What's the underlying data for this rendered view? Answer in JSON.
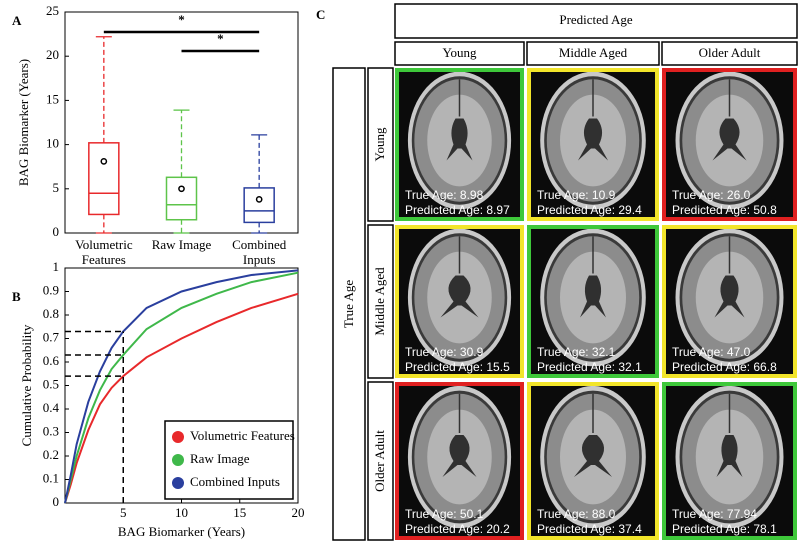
{
  "panel_labels": [
    "A",
    "B",
    "C"
  ],
  "chart_data": [
    {
      "type": "box",
      "ylabel": "BAG Biomarker (Years)",
      "categories": [
        "Volumetric Features",
        "Raw Image",
        "Combined Inputs"
      ],
      "colors": [
        "#e8292b",
        "#5ec44a",
        "#2a3f9e"
      ],
      "boxes": [
        {
          "whisker_low": 0,
          "q1": 2.1,
          "median": 4.5,
          "q3": 10.2,
          "whisker_high": 22.2,
          "mean": 8.1
        },
        {
          "whisker_low": 0,
          "q1": 1.5,
          "median": 3.2,
          "q3": 6.3,
          "whisker_high": 13.9,
          "mean": 5.0
        },
        {
          "whisker_low": 0,
          "q1": 1.2,
          "median": 2.5,
          "q3": 5.1,
          "whisker_high": 11.1,
          "mean": 3.8
        }
      ],
      "significance": [
        {
          "label": "*",
          "categories": [
            0,
            2
          ]
        },
        {
          "label": "*",
          "categories": [
            1,
            2
          ]
        }
      ],
      "ylim": [
        0,
        25
      ],
      "yticks": [
        0,
        5,
        10,
        15,
        20,
        25
      ]
    },
    {
      "type": "line",
      "xlabel": "BAG Biomarker (Years)",
      "ylabel": "Cumulative Probability",
      "x": [
        0,
        0.5,
        1,
        2,
        3,
        4,
        5,
        7,
        10,
        13,
        16,
        20
      ],
      "series": [
        {
          "name": "Volumetric Features",
          "color": "#e8292b",
          "values": [
            0,
            0.08,
            0.17,
            0.31,
            0.42,
            0.49,
            0.54,
            0.62,
            0.7,
            0.77,
            0.83,
            0.89
          ]
        },
        {
          "name": "Raw Image",
          "color": "#3fb84a",
          "values": [
            0,
            0.1,
            0.2,
            0.36,
            0.48,
            0.57,
            0.63,
            0.74,
            0.83,
            0.89,
            0.94,
            0.98
          ]
        },
        {
          "name": "Combined Inputs",
          "color": "#2a3f9e",
          "values": [
            0,
            0.12,
            0.25,
            0.43,
            0.56,
            0.66,
            0.73,
            0.83,
            0.9,
            0.94,
            0.97,
            0.99
          ]
        }
      ],
      "reference_x": 5,
      "xlim": [
        0,
        20
      ],
      "xticks": [
        5,
        10,
        15,
        20
      ],
      "ylim": [
        0,
        1
      ],
      "yticks": [
        0,
        0.1,
        0.2,
        0.3,
        0.4,
        0.5,
        0.6,
        0.7,
        0.8,
        0.9,
        1
      ],
      "legend": "lower right"
    }
  ],
  "grid": {
    "title": "Predicted Age",
    "row_title": "True Age",
    "columns": [
      "Young",
      "Middle Aged",
      "Older Adult"
    ],
    "rows": [
      "Young",
      "Middle Aged",
      "Older Adult"
    ],
    "cells": [
      [
        {
          "true_age": "True Age: 8.98",
          "predicted_age": "Predicted Age: 8.97",
          "border": "#3ec83a"
        },
        {
          "true_age": "True Age: 10.9",
          "predicted_age": "Predicted Age: 29.4",
          "border": "#f2e52a"
        },
        {
          "true_age": "True Age: 26.0",
          "predicted_age": "Predicted Age: 50.8",
          "border": "#e02020"
        }
      ],
      [
        {
          "true_age": "True Age: 30.9",
          "predicted_age": "Predicted Age: 15.5",
          "border": "#f2e52a"
        },
        {
          "true_age": "True Age: 32.1",
          "predicted_age": "Predicted Age: 32.1",
          "border": "#3ec83a"
        },
        {
          "true_age": "True Age: 47.0",
          "predicted_age": "Predicted Age: 66.8",
          "border": "#f2e52a"
        }
      ],
      [
        {
          "true_age": "True Age: 50.1",
          "predicted_age": "Predicted Age: 20.2",
          "border": "#e02020"
        },
        {
          "true_age": "True Age: 88.0",
          "predicted_age": "Predicted Age: 37.4",
          "border": "#f2e52a"
        },
        {
          "true_age": "True Age: 77.94",
          "predicted_age": "Predicted Age: 78.1",
          "border": "#3ec83a"
        }
      ]
    ]
  }
}
